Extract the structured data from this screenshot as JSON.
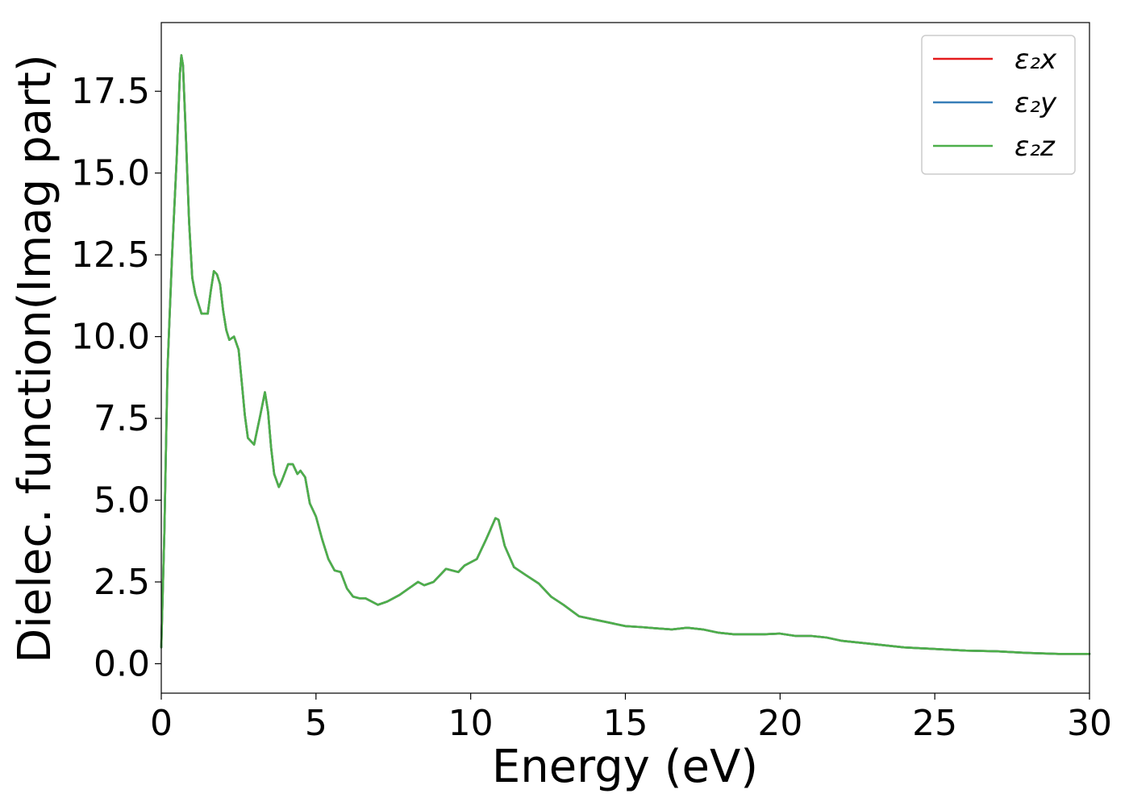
{
  "chart_data": {
    "type": "line",
    "title": "",
    "xlabel": "Energy (eV)",
    "ylabel": "Dielec. function(Imag part)",
    "xlim": [
      0,
      30
    ],
    "ylim": [
      -0.9,
      19.6
    ],
    "xticks": [
      0,
      5,
      10,
      15,
      20,
      25,
      30
    ],
    "xtick_labels": [
      "0",
      "5",
      "10",
      "15",
      "20",
      "25",
      "30"
    ],
    "yticks": [
      0,
      2.5,
      5,
      7.5,
      10,
      12.5,
      15,
      17.5
    ],
    "ytick_labels": [
      "0.0",
      "2.5",
      "5.0",
      "7.5",
      "10.0",
      "12.5",
      "15.0",
      "17.5"
    ],
    "grid": false,
    "legend_position": "top-right",
    "series": [
      {
        "name": "ε₂x",
        "color": "#e41a1c",
        "x": "shared",
        "y": "shared"
      },
      {
        "name": "ε₂y",
        "color": "#377eb8",
        "x": "shared",
        "y": "shared"
      },
      {
        "name": "ε₂z",
        "color": "#4daf4a",
        "x": "shared",
        "y": "shared"
      }
    ],
    "x": [
      0,
      0.1,
      0.2,
      0.35,
      0.5,
      0.6,
      0.65,
      0.7,
      0.8,
      0.9,
      1.0,
      1.1,
      1.3,
      1.5,
      1.6,
      1.7,
      1.8,
      1.9,
      2.0,
      2.1,
      2.2,
      2.35,
      2.5,
      2.6,
      2.7,
      2.8,
      3.0,
      3.2,
      3.35,
      3.45,
      3.55,
      3.65,
      3.8,
      3.9,
      4.1,
      4.25,
      4.4,
      4.5,
      4.65,
      4.8,
      5.0,
      5.2,
      5.4,
      5.6,
      5.8,
      6.0,
      6.2,
      6.4,
      6.6,
      7.0,
      7.3,
      7.7,
      8.0,
      8.3,
      8.5,
      8.8,
      9.2,
      9.6,
      9.8,
      10.2,
      10.5,
      10.8,
      10.9,
      11.1,
      11.4,
      11.8,
      12.2,
      12.6,
      13.0,
      13.5,
      14.0,
      14.5,
      15.0,
      15.5,
      16.0,
      16.5,
      17.0,
      17.5,
      18.0,
      18.5,
      19.0,
      19.5,
      20.0,
      20.5,
      21.0,
      21.5,
      22.0,
      23.0,
      24.0,
      25.0,
      26.0,
      27.0,
      28.0,
      29.0,
      30.0
    ],
    "y": [
      0.5,
      4.0,
      9.0,
      12.5,
      15.5,
      18.0,
      18.6,
      18.3,
      16.0,
      13.5,
      11.8,
      11.3,
      10.7,
      10.7,
      11.4,
      12.0,
      11.9,
      11.6,
      10.8,
      10.2,
      9.9,
      10.0,
      9.6,
      8.6,
      7.6,
      6.9,
      6.7,
      7.6,
      8.3,
      7.7,
      6.6,
      5.8,
      5.4,
      5.6,
      6.1,
      6.1,
      5.8,
      5.9,
      5.7,
      4.9,
      4.5,
      3.8,
      3.2,
      2.85,
      2.8,
      2.3,
      2.05,
      2.0,
      2.0,
      1.8,
      1.9,
      2.1,
      2.3,
      2.5,
      2.4,
      2.5,
      2.9,
      2.8,
      3.0,
      3.2,
      3.8,
      4.45,
      4.4,
      3.6,
      2.95,
      2.7,
      2.45,
      2.05,
      1.8,
      1.45,
      1.35,
      1.25,
      1.15,
      1.12,
      1.08,
      1.05,
      1.1,
      1.05,
      0.95,
      0.9,
      0.9,
      0.9,
      0.92,
      0.85,
      0.85,
      0.8,
      0.7,
      0.6,
      0.5,
      0.45,
      0.4,
      0.38,
      0.33,
      0.3,
      0.3
    ]
  }
}
